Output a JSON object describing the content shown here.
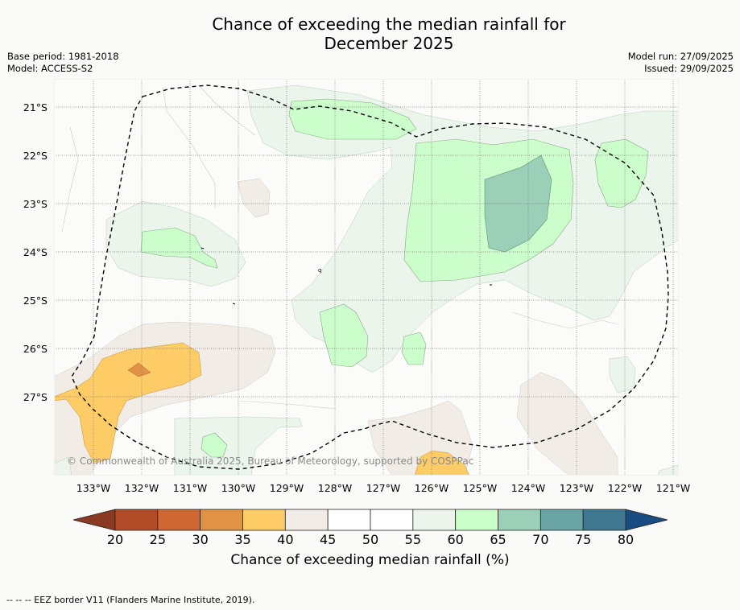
{
  "title_line1": "Chance of exceeding the median rainfall for",
  "title_line2": "December 2025",
  "meta_left": {
    "base_period": "Base period: 1981-2018",
    "model": "Model: ACCESS-S2"
  },
  "meta_right": {
    "model_run": "Model run: 27/09/2025",
    "issued": "Issued: 29/09/2025"
  },
  "map": {
    "copyright": "© Commonwealth of Australia 2025, Bureau of Meteorology, supported by COSPPac",
    "lat_labels": [
      "21°S",
      "22°S",
      "23°S",
      "24°S",
      "25°S",
      "26°S",
      "27°S"
    ],
    "lon_labels": [
      "133°W",
      "132°W",
      "131°W",
      "130°W",
      "129°W",
      "128°W",
      "127°W",
      "126°W",
      "125°W",
      "124°W",
      "123°W",
      "122°W",
      "121°W"
    ],
    "small_mark": "q"
  },
  "legend": {
    "label": "Chance of exceeding median rainfall (%)",
    "ticks": [
      "20",
      "25",
      "30",
      "35",
      "40",
      "45",
      "50",
      "55",
      "60",
      "65",
      "70",
      "75",
      "80"
    ],
    "colors": [
      "#8a3a22",
      "#b24c28",
      "#cf6733",
      "#e09345",
      "#fecc66",
      "#f1ece6",
      "#ffffff",
      "#ffffff",
      "#ebf5eb",
      "#ccfecc",
      "#9bcfb8",
      "#6aa4a4",
      "#3f7690",
      "#194c82"
    ]
  },
  "footer": "--  --  -- EEZ border V11 (Flanders Marine Institute, 2019)."
}
